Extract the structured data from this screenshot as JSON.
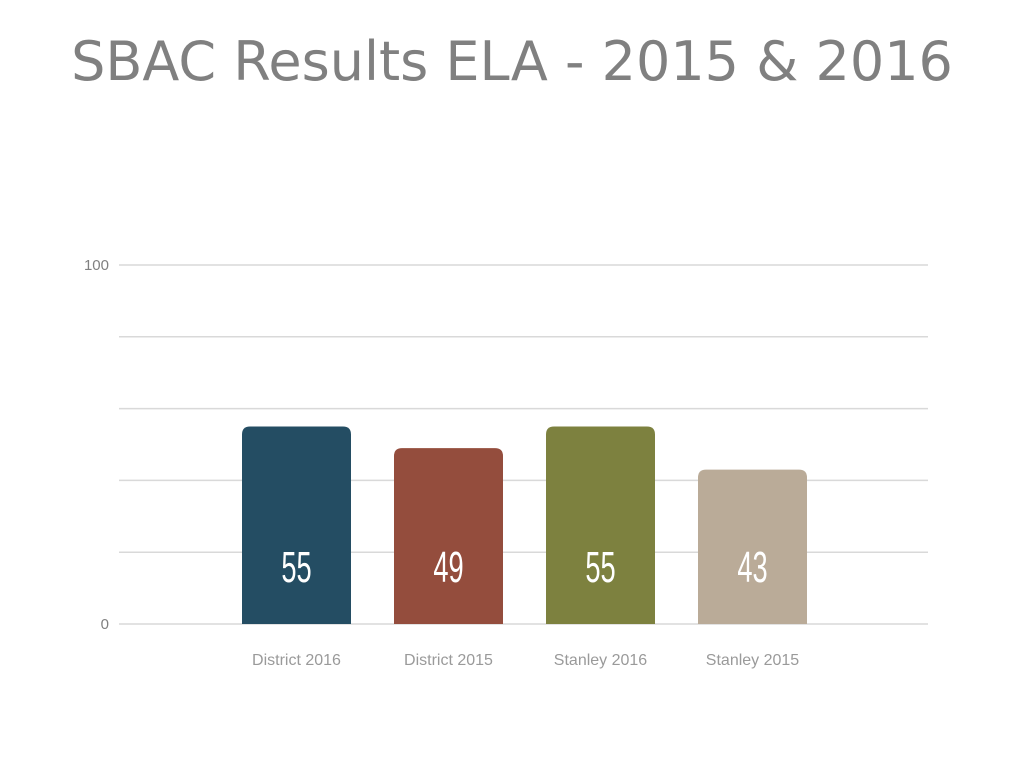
{
  "slide": {
    "title": "SBAC Results ELA - 2015 & 2016"
  },
  "chart_data": {
    "type": "bar",
    "categories": [
      "District 2016",
      "District 2015",
      "Stanley 2016",
      "Stanley 2015"
    ],
    "values": [
      55,
      49,
      55,
      43
    ],
    "colors": [
      "#244d63",
      "#944d3d",
      "#7d813f",
      "#baab98"
    ],
    "data_labels": [
      "55",
      "49",
      "55",
      "43"
    ],
    "ylim": [
      0,
      100
    ],
    "yticks": [
      0,
      20,
      40,
      60,
      80,
      100
    ],
    "ytick_labels_shown": [
      "0",
      "100"
    ],
    "grid": true,
    "legend": "none"
  }
}
